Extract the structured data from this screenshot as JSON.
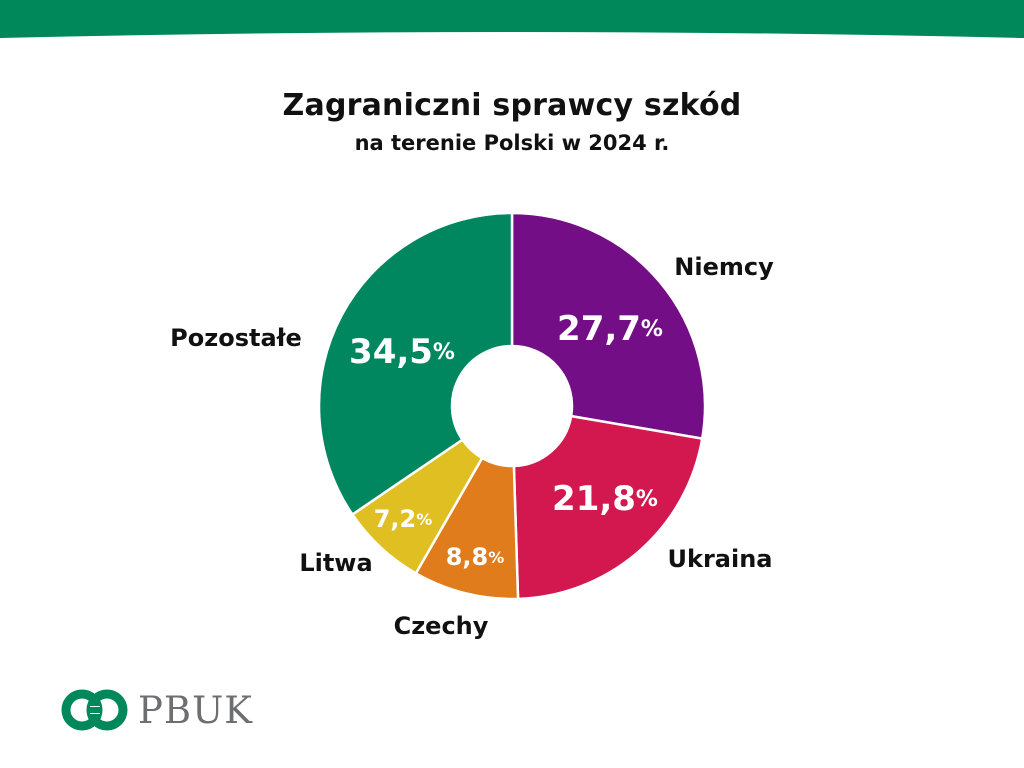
{
  "header": {
    "title": "Zagraniczni sprawcy szkód",
    "subtitle": "na terenie Polski w 2024 r."
  },
  "colors": {
    "brand_green": "#00875a",
    "background": "#ffffff"
  },
  "chart_data": {
    "type": "pie",
    "variant": "donut",
    "title": "Zagraniczni sprawcy szkód",
    "subtitle": "na terenie Polski w 2024 r.",
    "unit": "%",
    "start_direction": "top, clockwise",
    "slices": [
      {
        "label": "Niemcy",
        "value": 27.7,
        "display": "27,7",
        "color": "#740e87"
      },
      {
        "label": "Ukraina",
        "value": 21.8,
        "display": "21,8",
        "color": "#d3174f"
      },
      {
        "label": "Czechy",
        "value": 8.8,
        "display": "8,8",
        "color": "#e07c1b"
      },
      {
        "label": "Litwa",
        "value": 7.2,
        "display": "7,2",
        "color": "#dfbf22"
      },
      {
        "label": "Pozostałe",
        "value": 34.5,
        "display": "34,5",
        "color": "#00875f"
      }
    ]
  },
  "logo": {
    "text": "PBUK",
    "icon": "linked-rings-logo-icon"
  }
}
